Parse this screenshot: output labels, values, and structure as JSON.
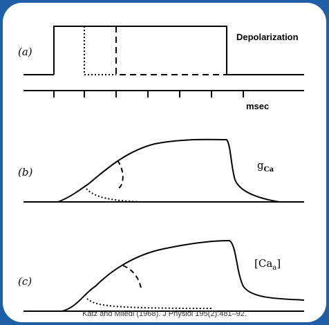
{
  "panels": {
    "a": {
      "letter": "(a)",
      "title": "Depolarization",
      "unit": "msec"
    },
    "b": {
      "letter": "(b)",
      "title_main": "g",
      "title_sub": "Ca"
    },
    "c": {
      "letter": "(c)",
      "title_main": "[Ca",
      "title_sub": "a",
      "title_close": "]"
    }
  },
  "caption": "Katz and Miledi (1968). J Physiol 195(2):481–92."
}
